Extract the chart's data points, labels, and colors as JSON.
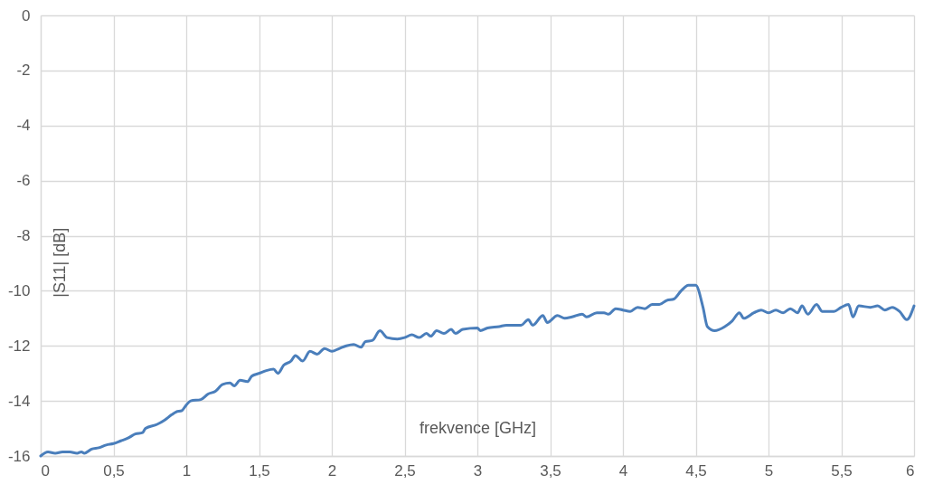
{
  "chart_data": {
    "type": "line",
    "xlabel": "frekvence [GHz]",
    "ylabel": "|S11| [dB]",
    "xlim": [
      0,
      6
    ],
    "ylim": [
      -16,
      0
    ],
    "xticks": [
      0,
      {
        "value": 0.5,
        "label": "0,5"
      },
      1,
      {
        "value": 1.5,
        "label": "1,5"
      },
      2,
      {
        "value": 2.5,
        "label": "2,5"
      },
      3,
      {
        "value": 3.5,
        "label": "3,5"
      },
      4,
      {
        "value": 4.5,
        "label": "4,5"
      },
      5,
      {
        "value": 5.5,
        "label": "5,5"
      },
      6
    ],
    "yticks": [
      -16,
      -14,
      -12,
      -10,
      -8,
      -6,
      -4,
      -2,
      0
    ],
    "grid": true,
    "line_style": "solid",
    "marker": "none",
    "series": [
      {
        "color": "#4a7ebb",
        "x": [
          0,
          0.05,
          0.1,
          0.15,
          0.2,
          0.25,
          0.28,
          0.3,
          0.35,
          0.4,
          0.45,
          0.5,
          0.55,
          0.6,
          0.65,
          0.7,
          0.72,
          0.8,
          0.85,
          0.9,
          0.93,
          0.97,
          1.0,
          1.03,
          1.1,
          1.15,
          1.2,
          1.25,
          1.3,
          1.33,
          1.37,
          1.42,
          1.45,
          1.5,
          1.55,
          1.6,
          1.63,
          1.67,
          1.72,
          1.75,
          1.8,
          1.85,
          1.9,
          1.95,
          2.0,
          2.05,
          2.1,
          2.15,
          2.2,
          2.23,
          2.28,
          2.33,
          2.38,
          2.45,
          2.5,
          2.55,
          2.6,
          2.65,
          2.68,
          2.72,
          2.77,
          2.82,
          2.85,
          2.9,
          3.0,
          3.02,
          3.07,
          3.15,
          3.2,
          3.3,
          3.35,
          3.38,
          3.45,
          3.48,
          3.55,
          3.6,
          3.65,
          3.72,
          3.75,
          3.82,
          3.87,
          3.9,
          3.95,
          4.0,
          4.05,
          4.1,
          4.15,
          4.2,
          4.25,
          4.3,
          4.35,
          4.4,
          4.45,
          4.5,
          4.55,
          4.58,
          4.63,
          4.7,
          4.75,
          4.8,
          4.83,
          4.9,
          4.95,
          5.0,
          5.05,
          5.1,
          5.15,
          5.2,
          5.23,
          5.27,
          5.33,
          5.37,
          5.45,
          5.5,
          5.55,
          5.58,
          5.62,
          5.7,
          5.75,
          5.8,
          5.85,
          5.9,
          5.95,
          6.0
        ],
        "values": [
          -16.0,
          -15.85,
          -15.9,
          -15.85,
          -15.85,
          -15.9,
          -15.85,
          -15.9,
          -15.75,
          -15.7,
          -15.6,
          -15.55,
          -15.45,
          -15.35,
          -15.2,
          -15.15,
          -15.0,
          -14.85,
          -14.7,
          -14.5,
          -14.4,
          -14.35,
          -14.15,
          -14.0,
          -13.95,
          -13.75,
          -13.65,
          -13.4,
          -13.35,
          -13.45,
          -13.25,
          -13.3,
          -13.1,
          -13.0,
          -12.9,
          -12.85,
          -13.0,
          -12.7,
          -12.55,
          -12.35,
          -12.55,
          -12.2,
          -12.3,
          -12.1,
          -12.2,
          -12.1,
          -12.0,
          -11.95,
          -12.05,
          -11.85,
          -11.8,
          -11.45,
          -11.7,
          -11.75,
          -11.7,
          -11.6,
          -11.7,
          -11.55,
          -11.65,
          -11.45,
          -11.55,
          -11.4,
          -11.55,
          -11.4,
          -11.35,
          -11.45,
          -11.35,
          -11.3,
          -11.25,
          -11.25,
          -11.05,
          -11.25,
          -10.9,
          -11.15,
          -10.9,
          -11.0,
          -10.95,
          -10.85,
          -10.95,
          -10.8,
          -10.8,
          -10.85,
          -10.65,
          -10.7,
          -10.75,
          -10.6,
          -10.65,
          -10.5,
          -10.5,
          -10.35,
          -10.3,
          -10.0,
          -9.8,
          -9.8,
          -10.6,
          -11.3,
          -11.45,
          -11.3,
          -11.1,
          -10.8,
          -11.0,
          -10.8,
          -10.7,
          -10.8,
          -10.7,
          -10.8,
          -10.65,
          -10.8,
          -10.55,
          -10.85,
          -10.5,
          -10.75,
          -10.75,
          -10.6,
          -10.5,
          -10.95,
          -10.55,
          -10.6,
          -10.55,
          -10.7,
          -10.6,
          -10.75,
          -11.05,
          -10.55
        ]
      }
    ]
  }
}
